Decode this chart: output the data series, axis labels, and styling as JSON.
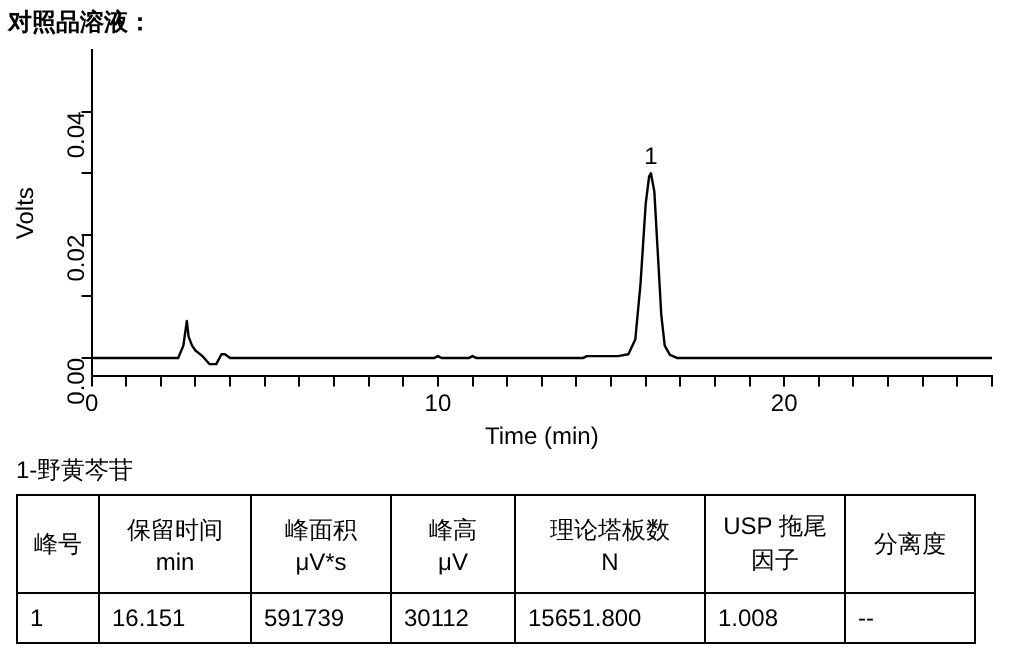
{
  "chart_data": {
    "type": "line",
    "title": "对照品溶液：",
    "xlabel": "Time (min)",
    "ylabel": "Volts",
    "x": [
      0,
      2.5,
      2.65,
      2.75,
      2.8,
      2.9,
      3.0,
      3.2,
      3.4,
      3.6,
      3.75,
      3.85,
      4.0,
      9.9,
      10.0,
      10.1,
      10.9,
      11.0,
      11.1,
      14.2,
      14.3,
      15.2,
      15.5,
      15.7,
      15.85,
      16.0,
      16.1,
      16.151,
      16.25,
      16.35,
      16.45,
      16.55,
      16.7,
      16.9,
      26
    ],
    "series": [
      {
        "color": "#000000",
        "values": [
          0,
          0,
          0.002,
          0.006,
          0.0035,
          0.002,
          0.0012,
          0.0003,
          -0.001,
          -0.001,
          0.0006,
          0.0006,
          0,
          0,
          0.0003,
          0,
          0,
          0.0003,
          0,
          0,
          0.0003,
          0.0003,
          0.0006,
          0.003,
          0.012,
          0.025,
          0.0295,
          0.03,
          0.027,
          0.017,
          0.007,
          0.002,
          0.0005,
          0,
          0
        ]
      }
    ],
    "xlim": [
      0,
      26
    ],
    "ylim": [
      -0.003,
      0.05
    ],
    "xticks": [
      0,
      {
        "value": 1,
        "label": null
      },
      {
        "value": 2,
        "label": null
      },
      {
        "value": 3,
        "label": null
      },
      {
        "value": 4,
        "label": null
      },
      {
        "value": 5,
        "label": null
      },
      {
        "value": 6,
        "label": null
      },
      {
        "value": 7,
        "label": null
      },
      {
        "value": 8,
        "label": null
      },
      {
        "value": 9,
        "label": null
      },
      10,
      {
        "value": 11,
        "label": null
      },
      {
        "value": 12,
        "label": null
      },
      {
        "value": 13,
        "label": null
      },
      {
        "value": 14,
        "label": null
      },
      {
        "value": 15,
        "label": null
      },
      {
        "value": 16,
        "label": null
      },
      {
        "value": 17,
        "label": null
      },
      {
        "value": 18,
        "label": null
      },
      {
        "value": 19,
        "label": null
      },
      20,
      {
        "value": 21,
        "label": null
      },
      {
        "value": 22,
        "label": null
      },
      {
        "value": 23,
        "label": null
      },
      {
        "value": 24,
        "label": null
      },
      {
        "value": 25,
        "label": null
      },
      {
        "value": 26,
        "label": null
      }
    ],
    "yticks": [
      {
        "value": 0,
        "label": "0.00"
      },
      {
        "value": 0.01,
        "label": null
      },
      {
        "value": 0.02,
        "label": "0.02"
      },
      {
        "value": 0.03,
        "label": null
      },
      {
        "value": 0.04,
        "label": "0.04"
      }
    ],
    "grid": false,
    "marker": "none",
    "line_style": "solid",
    "annotations": [
      {
        "text": "1",
        "x": 16.151,
        "y": 0.03
      },
      "1-野黄芩苷",
      "峰号",
      "保留时间\nmin",
      "峰面积\nμV*s",
      "峰高\nμV",
      "理论塔板数\nN",
      "USP 拖尾因子",
      "分离度",
      "1",
      "16.151",
      "591739",
      "30112",
      "15651.800",
      "1.008",
      "--"
    ]
  }
}
